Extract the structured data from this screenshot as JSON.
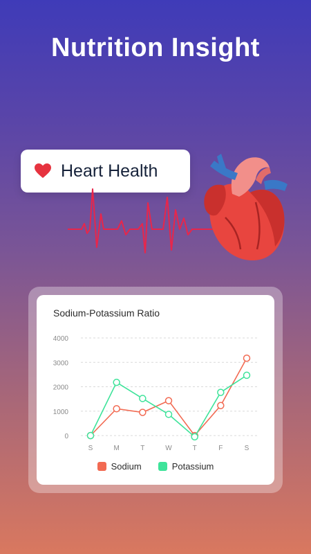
{
  "headline": "Nutrition Insight",
  "badge": {
    "label": "Heart Health",
    "icon": "heart-icon",
    "icon_color": "#e6333f"
  },
  "illustration": {
    "icon": "anatomical-heart-illustration",
    "ecg_color": "#e8264b"
  },
  "chart_data": {
    "type": "line",
    "title": "Sodium-Potassium Ratio",
    "categories": [
      "S",
      "M",
      "T",
      "W",
      "T",
      "F",
      "S"
    ],
    "ylim": [
      0,
      4000
    ],
    "yticks": [
      0,
      1000,
      2000,
      3000,
      4000
    ],
    "grid": true,
    "legend_position": "bottom",
    "series": [
      {
        "name": "Sodium",
        "color": "#f26a52",
        "values": [
          0,
          1100,
          950,
          1430,
          0,
          1230,
          3170
        ]
      },
      {
        "name": "Potassium",
        "color": "#3ee39a",
        "values": [
          0,
          2180,
          1520,
          870,
          -50,
          1770,
          2470
        ]
      }
    ]
  }
}
